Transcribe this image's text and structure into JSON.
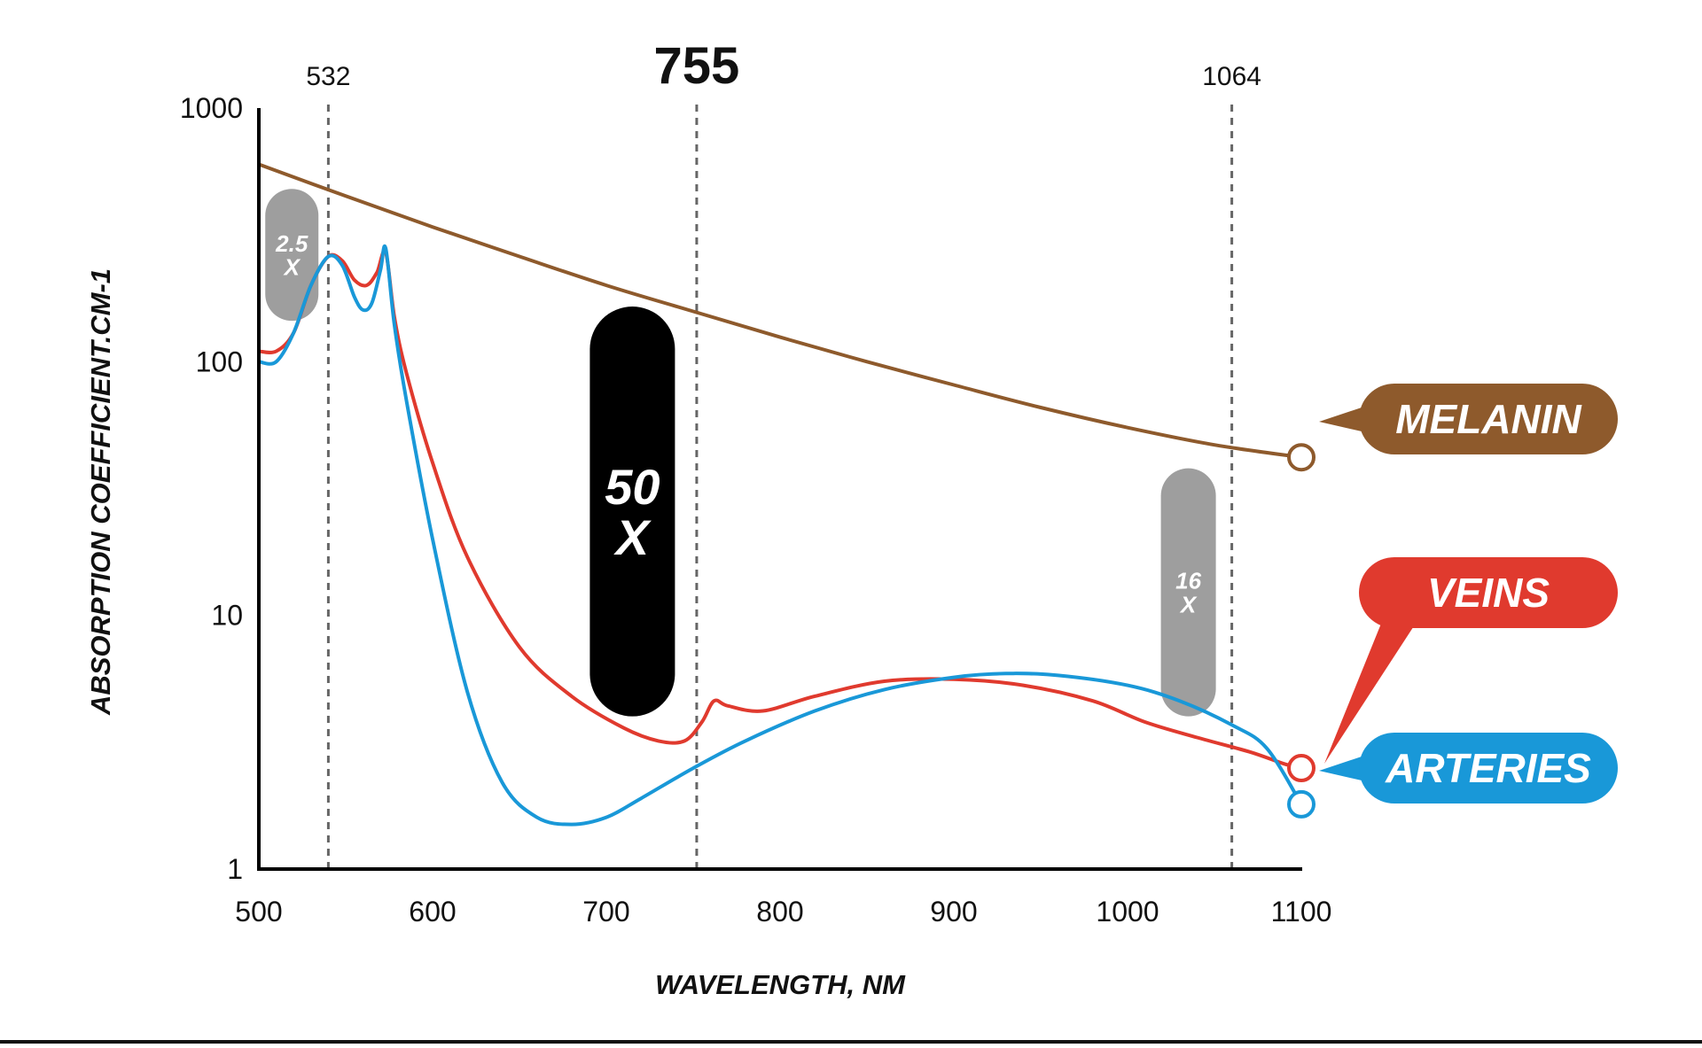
{
  "chart_data": {
    "type": "line",
    "title": "",
    "xlabel": "WAVELENGTH, NM",
    "ylabel": "ABSORPTION COEFFICIENT.CM-1",
    "x_range": [
      500,
      1100
    ],
    "y_range": [
      1,
      1000
    ],
    "y_scale": "log",
    "x_ticks": [
      "500",
      "600",
      "700",
      "800",
      "900",
      "1000",
      "1100"
    ],
    "y_ticks": [
      "1",
      "10",
      "100",
      "1000"
    ],
    "grid": false,
    "reference_lines": [
      {
        "x": 540,
        "label": "532",
        "emphasis": false
      },
      {
        "x": 752,
        "label": "755",
        "emphasis": true
      },
      {
        "x": 1060,
        "label": "1064",
        "emphasis": false
      }
    ],
    "series": [
      {
        "name": "MELANIN",
        "color": "#8e5a2c",
        "points": [
          [
            500,
            600
          ],
          [
            550,
            450
          ],
          [
            600,
            340
          ],
          [
            650,
            260
          ],
          [
            700,
            200
          ],
          [
            750,
            158
          ],
          [
            800,
            125
          ],
          [
            850,
            100
          ],
          [
            900,
            81
          ],
          [
            950,
            66
          ],
          [
            1000,
            55
          ],
          [
            1050,
            47
          ],
          [
            1100,
            42
          ]
        ]
      },
      {
        "name": "VEINS",
        "color": "#e03a2e",
        "points": [
          [
            500,
            110
          ],
          [
            510,
            110
          ],
          [
            520,
            130
          ],
          [
            530,
            200
          ],
          [
            540,
            260
          ],
          [
            548,
            250
          ],
          [
            555,
            210
          ],
          [
            562,
            200
          ],
          [
            568,
            225
          ],
          [
            573,
            270
          ],
          [
            578,
            150
          ],
          [
            585,
            90
          ],
          [
            600,
            40
          ],
          [
            620,
            17
          ],
          [
            650,
            7.5
          ],
          [
            680,
            4.8
          ],
          [
            710,
            3.6
          ],
          [
            730,
            3.2
          ],
          [
            745,
            3.2
          ],
          [
            755,
            3.8
          ],
          [
            762,
            4.6
          ],
          [
            770,
            4.4
          ],
          [
            790,
            4.2
          ],
          [
            820,
            4.8
          ],
          [
            860,
            5.5
          ],
          [
            900,
            5.6
          ],
          [
            940,
            5.3
          ],
          [
            980,
            4.6
          ],
          [
            1010,
            3.8
          ],
          [
            1040,
            3.3
          ],
          [
            1070,
            2.9
          ],
          [
            1090,
            2.6
          ],
          [
            1100,
            2.5
          ]
        ]
      },
      {
        "name": "ARTERIES",
        "color": "#1998d8",
        "points": [
          [
            500,
            100
          ],
          [
            510,
            100
          ],
          [
            520,
            130
          ],
          [
            530,
            200
          ],
          [
            540,
            260
          ],
          [
            548,
            240
          ],
          [
            555,
            180
          ],
          [
            560,
            160
          ],
          [
            565,
            170
          ],
          [
            570,
            230
          ],
          [
            573,
            280
          ],
          [
            578,
            140
          ],
          [
            585,
            70
          ],
          [
            600,
            20
          ],
          [
            620,
            5
          ],
          [
            640,
            2.2
          ],
          [
            660,
            1.6
          ],
          [
            680,
            1.5
          ],
          [
            700,
            1.6
          ],
          [
            720,
            1.9
          ],
          [
            750,
            2.5
          ],
          [
            780,
            3.2
          ],
          [
            820,
            4.2
          ],
          [
            860,
            5.1
          ],
          [
            900,
            5.7
          ],
          [
            930,
            5.9
          ],
          [
            960,
            5.8
          ],
          [
            1000,
            5.3
          ],
          [
            1030,
            4.6
          ],
          [
            1060,
            3.7
          ],
          [
            1080,
            3.0
          ],
          [
            1100,
            1.8
          ]
        ]
      }
    ],
    "annotations": [
      {
        "label_lines": [
          "2.5",
          "X"
        ],
        "x": 519,
        "y_range": [
          145,
          480
        ],
        "color": "#9e9e9e",
        "size": "small"
      },
      {
        "label_lines": [
          "50",
          "X"
        ],
        "x": 715,
        "y_range": [
          4,
          165
        ],
        "color": "#000000",
        "size": "large"
      },
      {
        "label_lines": [
          "16",
          "X"
        ],
        "x": 1035,
        "y_range": [
          4,
          38
        ],
        "color": "#9e9e9e",
        "size": "medium"
      }
    ],
    "legend_position": "right"
  }
}
